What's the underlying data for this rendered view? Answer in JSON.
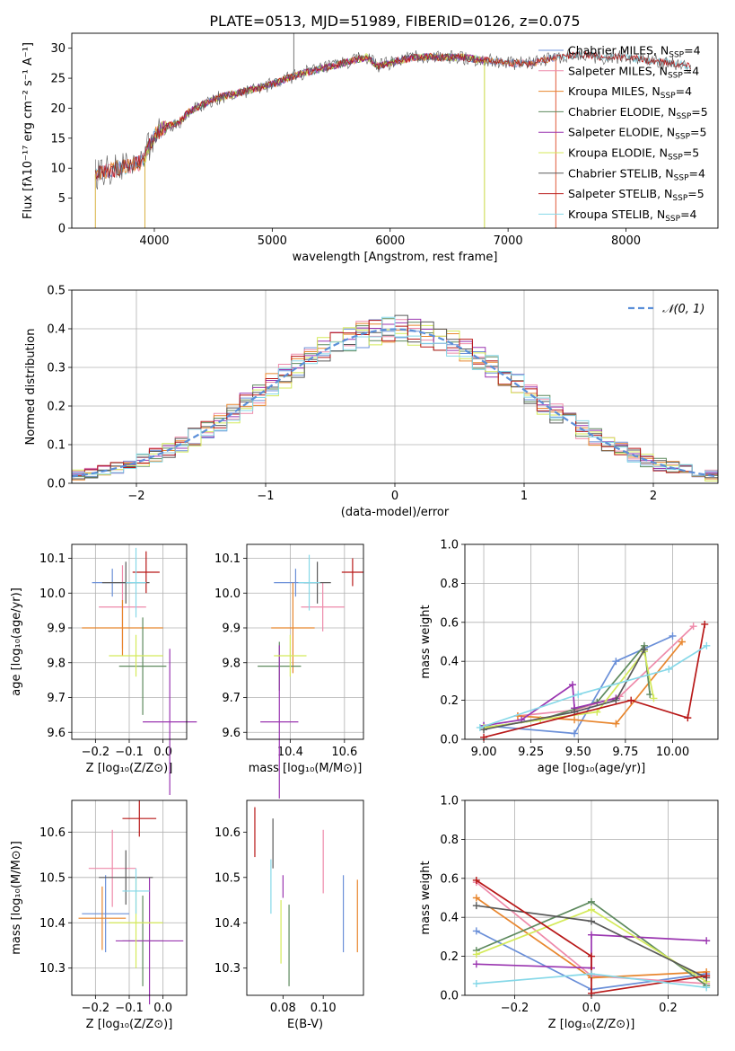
{
  "title": "PLATE=0513, MJD=51989, FIBERID=0126, z=0.075",
  "colors": {
    "Chabrier MILES": "#6a8fd8",
    "Salpeter MILES": "#ee8aaa",
    "Kroupa MILES": "#e8862e",
    "Chabrier ELODIE": "#5e8a5e",
    "Salpeter ELODIE": "#9a35b0",
    "Kroupa ELODIE": "#d4ea5a",
    "Chabrier STELIB": "#5a5a5a",
    "Salpeter STELIB": "#b81818",
    "Kroupa STELIB": "#86d8e8",
    "normal": "#5b8fd9"
  },
  "legend_text": [
    {
      "name": "Chabrier MILES",
      "label": "Chabrier MILES, N",
      "sub": "SSP",
      "tail": "=4"
    },
    {
      "name": "Salpeter MILES",
      "label": "Salpeter MILES, N",
      "sub": "SSP",
      "tail": "=4"
    },
    {
      "name": "Kroupa MILES",
      "label": "Kroupa MILES, N",
      "sub": "SSP",
      "tail": "=4"
    },
    {
      "name": "Chabrier ELODIE",
      "label": "Chabrier ELODIE, N",
      "sub": "SSP",
      "tail": "=5"
    },
    {
      "name": "Salpeter ELODIE",
      "label": "Salpeter ELODIE, N",
      "sub": "SSP",
      "tail": "=5"
    },
    {
      "name": "Kroupa ELODIE",
      "label": "Kroupa ELODIE, N",
      "sub": "SSP",
      "tail": "=5"
    },
    {
      "name": "Chabrier STELIB",
      "label": "Chabrier STELIB, N",
      "sub": "SSP",
      "tail": "=4"
    },
    {
      "name": "Salpeter STELIB",
      "label": "Salpeter STELIB, N",
      "sub": "SSP",
      "tail": "=5"
    },
    {
      "name": "Kroupa STELIB",
      "label": "Kroupa STELIB, N",
      "sub": "SSP",
      "tail": "=4"
    }
  ],
  "chart_data": [
    {
      "id": "spectrum",
      "type": "line",
      "xlabel": "wavelength [Angstrom, rest frame]",
      "ylabel": "Flux [fλ10⁻¹⁷ erg cm⁻² s⁻¹ A⁻¹]",
      "xlim": [
        3300,
        8780
      ],
      "ylim": [
        0,
        32.5
      ],
      "xticks": [
        4000,
        5000,
        6000,
        7000,
        8000
      ],
      "yticks": [
        0,
        5,
        10,
        15,
        20,
        25,
        30
      ],
      "grid": false,
      "legend": "upper right",
      "continuum": {
        "x": [
          3500,
          3700,
          3900,
          3950,
          4000,
          4100,
          4200,
          4300,
          4500,
          4700,
          4900,
          5000,
          5200,
          5400,
          5600,
          5800,
          5900,
          6000,
          6200,
          6400,
          6600,
          6800,
          7000,
          7200,
          7400,
          7600,
          7800,
          8000,
          8200,
          8400,
          8550
        ],
        "y": [
          9,
          10,
          11,
          13.5,
          15.5,
          17,
          17.5,
          19.5,
          21.5,
          22.5,
          23.5,
          24,
          25.5,
          26.5,
          27.5,
          28.5,
          27,
          27.5,
          28.5,
          28.5,
          28.5,
          28,
          27.5,
          27.5,
          28.5,
          29,
          28.5,
          28.5,
          28,
          27.5,
          27
        ]
      },
      "spikes": [
        {
          "x": 3500,
          "y": 0
        },
        {
          "x": 3920,
          "y": 0
        },
        {
          "x": 5183,
          "y": 32.5
        },
        {
          "x": 6800,
          "y": 0
        },
        {
          "x": 7405,
          "y": 0
        }
      ]
    },
    {
      "id": "residual-histogram",
      "type": "line",
      "xlabel": "(data-model)/error",
      "ylabel": "Normed distribution",
      "xlim": [
        -2.5,
        2.5
      ],
      "ylim": [
        0,
        0.5
      ],
      "xticks": [
        -2,
        -1,
        0,
        1,
        2
      ],
      "yticks": [
        0,
        0.1,
        0.2,
        0.3,
        0.4,
        0.5
      ],
      "grid": true,
      "legend": "upper right",
      "reference_label": "𝒩(0, 1)",
      "bin_width": 0.1
    },
    {
      "id": "age-vs-Z",
      "type": "scatter",
      "xlabel": "Z [log₁₀(Z/Z⊙)]",
      "ylabel": "age  [log₁₀(age/yr)]",
      "xlim": [
        -0.27,
        0.07
      ],
      "ylim": [
        9.58,
        10.14
      ],
      "xticks": [
        -0.2,
        -0.1,
        0.0
      ],
      "yticks": [
        9.6,
        9.7,
        9.8,
        9.9,
        10.0,
        10.1
      ],
      "grid": true,
      "points": [
        {
          "name": "Chabrier MILES",
          "x": -0.15,
          "xerr": 0.06,
          "y": 10.03,
          "yerr": 0.04
        },
        {
          "name": "Salpeter MILES",
          "x": -0.12,
          "xerr": 0.07,
          "y": 9.96,
          "yerr": 0.12
        },
        {
          "name": "Kroupa MILES",
          "x": -0.12,
          "xerr": 0.12,
          "y": 9.9,
          "yerr": 0.08
        },
        {
          "name": "Chabrier ELODIE",
          "x": -0.06,
          "xerr": 0.07,
          "y": 9.79,
          "yerr": 0.14
        },
        {
          "name": "Salpeter ELODIE",
          "x": 0.02,
          "xerr": 0.08,
          "y": 9.63,
          "yerr": 0.21
        },
        {
          "name": "Kroupa ELODIE",
          "x": -0.08,
          "xerr": 0.08,
          "y": 9.82,
          "yerr": 0.06
        },
        {
          "name": "Chabrier STELIB",
          "x": -0.11,
          "xerr": 0.07,
          "y": 10.03,
          "yerr": 0.06
        },
        {
          "name": "Salpeter STELIB",
          "x": -0.05,
          "xerr": 0.04,
          "y": 10.06,
          "yerr": 0.06
        },
        {
          "name": "Kroupa STELIB",
          "x": -0.08,
          "xerr": 0.03,
          "y": 10.03,
          "yerr": 0.1
        }
      ]
    },
    {
      "id": "age-vs-mass",
      "type": "scatter",
      "xlabel": "mass [log₁₀(M/M⊙)]",
      "ylabel": "",
      "xlim": [
        10.24,
        10.67
      ],
      "ylim": [
        9.58,
        10.14
      ],
      "xticks": [
        10.4,
        10.6
      ],
      "yticks": [
        9.6,
        9.7,
        9.8,
        9.9,
        10.0,
        10.1
      ],
      "grid": true,
      "points": [
        {
          "name": "Chabrier MILES",
          "x": 10.42,
          "xerr": 0.08,
          "y": 10.03,
          "yerr": 0.04
        },
        {
          "name": "Salpeter MILES",
          "x": 10.52,
          "xerr": 0.08,
          "y": 9.96,
          "yerr": 0.07
        },
        {
          "name": "Kroupa MILES",
          "x": 10.41,
          "xerr": 0.08,
          "y": 9.9,
          "yerr": 0.13
        },
        {
          "name": "Chabrier ELODIE",
          "x": 10.36,
          "xerr": 0.08,
          "y": 9.79,
          "yerr": 0.07
        },
        {
          "name": "Salpeter ELODIE",
          "x": 10.36,
          "xerr": 0.07,
          "y": 9.63,
          "yerr": 0.22
        },
        {
          "name": "Kroupa ELODIE",
          "x": 10.4,
          "xerr": 0.06,
          "y": 9.82,
          "yerr": 0.06
        },
        {
          "name": "Chabrier STELIB",
          "x": 10.5,
          "xerr": 0.05,
          "y": 10.03,
          "yerr": 0.06
        },
        {
          "name": "Salpeter STELIB",
          "x": 10.63,
          "xerr": 0.04,
          "y": 10.06,
          "yerr": 0.04
        },
        {
          "name": "Kroupa STELIB",
          "x": 10.47,
          "xerr": 0.04,
          "y": 10.03,
          "yerr": 0.08
        }
      ]
    },
    {
      "id": "weights-vs-age",
      "type": "line",
      "xlabel": "age  [log₁₀(age/yr)]",
      "ylabel": "mass weight",
      "xlim": [
        8.9,
        10.24
      ],
      "ylim": [
        0,
        1
      ],
      "xticks": [
        9.0,
        9.25,
        9.5,
        9.75,
        10.0
      ],
      "yticks": [
        0.0,
        0.2,
        0.4,
        0.6,
        0.8,
        1.0
      ],
      "grid": true,
      "series": [
        {
          "name": "Chabrier MILES",
          "x": [
            9.0,
            9.48,
            9.7,
            10.0
          ],
          "y": [
            0.07,
            0.03,
            0.4,
            0.53
          ]
        },
        {
          "name": "Salpeter MILES",
          "x": [
            9.18,
            9.48,
            9.72,
            10.11
          ],
          "y": [
            0.12,
            0.15,
            0.22,
            0.58
          ]
        },
        {
          "name": "Kroupa MILES",
          "x": [
            9.18,
            9.48,
            9.7,
            10.05
          ],
          "y": [
            0.12,
            0.1,
            0.08,
            0.5
          ]
        },
        {
          "name": "Chabrier ELODIE",
          "x": [
            9.0,
            9.3,
            9.6,
            9.85,
            9.88
          ],
          "y": [
            0.06,
            0.1,
            0.19,
            0.48,
            0.23
          ]
        },
        {
          "name": "Salpeter ELODIE",
          "x": [
            9.0,
            9.2,
            9.47,
            9.48,
            9.7
          ],
          "y": [
            0.07,
            0.1,
            0.28,
            0.16,
            0.21
          ]
        },
        {
          "name": "Kroupa ELODIE",
          "x": [
            9.0,
            9.3,
            9.6,
            9.85,
            9.9
          ],
          "y": [
            0.06,
            0.1,
            0.14,
            0.45,
            0.21
          ]
        },
        {
          "name": "Chabrier STELIB",
          "x": [
            9.0,
            9.48,
            9.7,
            9.85
          ],
          "y": [
            0.05,
            0.14,
            0.2,
            0.46
          ]
        },
        {
          "name": "Salpeter STELIB",
          "x": [
            9.0,
            9.78,
            10.08,
            10.17
          ],
          "y": [
            0.01,
            0.2,
            0.11,
            0.59
          ]
        },
        {
          "name": "Kroupa STELIB",
          "x": [
            8.98,
            9.5,
            9.98,
            10.18
          ],
          "y": [
            0.06,
            0.23,
            0.36,
            0.48
          ]
        }
      ]
    },
    {
      "id": "mass-vs-Z",
      "type": "scatter",
      "xlabel": "Z [log₁₀(Z/Z⊙)]",
      "ylabel": "mass [log₁₀(M/M⊙)]",
      "xlim": [
        -0.27,
        0.07
      ],
      "ylim": [
        10.24,
        10.67
      ],
      "xticks": [
        -0.2,
        -0.1,
        0.0
      ],
      "yticks": [
        10.3,
        10.4,
        10.5,
        10.6
      ],
      "grid": true,
      "points": [
        {
          "name": "Chabrier MILES",
          "x": -0.17,
          "xerr": 0.07,
          "y": 10.42,
          "yerr": 0.085
        },
        {
          "name": "Salpeter MILES",
          "x": -0.15,
          "xerr": 0.07,
          "y": 10.52,
          "yerr": 0.085
        },
        {
          "name": "Kroupa MILES",
          "x": -0.18,
          "xerr": 0.07,
          "y": 10.41,
          "yerr": 0.07
        },
        {
          "name": "Chabrier ELODIE",
          "x": -0.06,
          "xerr": 0.06,
          "y": 10.36,
          "yerr": 0.1
        },
        {
          "name": "Salpeter ELODIE",
          "x": -0.04,
          "xerr": 0.1,
          "y": 10.36,
          "yerr": 0.14
        },
        {
          "name": "Kroupa ELODIE",
          "x": -0.08,
          "xerr": 0.08,
          "y": 10.4,
          "yerr": 0.1
        },
        {
          "name": "Chabrier STELIB",
          "x": -0.11,
          "xerr": 0.08,
          "y": 10.5,
          "yerr": 0.06
        },
        {
          "name": "Salpeter STELIB",
          "x": -0.07,
          "xerr": 0.05,
          "y": 10.63,
          "yerr": 0.04
        },
        {
          "name": "Kroupa STELIB",
          "x": -0.08,
          "xerr": 0.04,
          "y": 10.47,
          "yerr": 0.05
        }
      ]
    },
    {
      "id": "mass-vs-ebv",
      "type": "scatter",
      "xlabel": "E(B-V)",
      "ylabel": "",
      "xlim": [
        0.062,
        0.12
      ],
      "ylim": [
        10.24,
        10.67
      ],
      "xticks": [
        0.08,
        0.1
      ],
      "yticks": [
        10.3,
        10.4,
        10.5,
        10.6
      ],
      "grid": false,
      "points": [
        {
          "name": "Chabrier MILES",
          "x": 0.11,
          "xerr": 0,
          "y": 10.42,
          "yerr": 0.085
        },
        {
          "name": "Salpeter MILES",
          "x": 0.1,
          "xerr": 0,
          "y": 10.535,
          "yerr": 0.07
        },
        {
          "name": "Kroupa MILES",
          "x": 0.117,
          "xerr": 0,
          "y": 10.415,
          "yerr": 0.08
        },
        {
          "name": "Chabrier ELODIE",
          "x": 0.083,
          "xerr": 0,
          "y": 10.35,
          "yerr": 0.09
        },
        {
          "name": "Salpeter ELODIE",
          "x": 0.08,
          "xerr": 0,
          "y": 10.48,
          "yerr": 0.025
        },
        {
          "name": "Kroupa ELODIE",
          "x": 0.079,
          "xerr": 0,
          "y": 10.38,
          "yerr": 0.07
        },
        {
          "name": "Chabrier STELIB",
          "x": 0.075,
          "xerr": 0,
          "y": 10.575,
          "yerr": 0.055
        },
        {
          "name": "Salpeter STELIB",
          "x": 0.066,
          "xerr": 0,
          "y": 10.6,
          "yerr": 0.055
        },
        {
          "name": "Kroupa STELIB",
          "x": 0.074,
          "xerr": 0,
          "y": 10.48,
          "yerr": 0.06
        }
      ]
    },
    {
      "id": "weights-vs-Z",
      "type": "line",
      "xlabel": "Z [log₁₀(Z/Z⊙)]",
      "ylabel": "mass weight",
      "xlim": [
        -0.33,
        0.33
      ],
      "ylim": [
        0,
        1
      ],
      "xticks": [
        -0.2,
        0.0,
        0.2
      ],
      "yticks": [
        0.0,
        0.2,
        0.4,
        0.6,
        0.8,
        1.0
      ],
      "grid": true,
      "series": [
        {
          "name": "Chabrier MILES",
          "x": [
            -0.3,
            0.0,
            0.3
          ],
          "y": [
            0.33,
            0.03,
            0.11
          ]
        },
        {
          "name": "Salpeter MILES",
          "x": [
            -0.3,
            0.0,
            0.3
          ],
          "y": [
            0.58,
            0.1,
            0.06
          ]
        },
        {
          "name": "Kroupa MILES",
          "x": [
            -0.3,
            0.0,
            0.3
          ],
          "y": [
            0.5,
            0.09,
            0.12
          ]
        },
        {
          "name": "Chabrier ELODIE",
          "x": [
            -0.3,
            0.0,
            0.3
          ],
          "y": [
            0.23,
            0.48,
            0.05
          ]
        },
        {
          "name": "Salpeter ELODIE",
          "x": [
            -0.3,
            0.0,
            0.0,
            0.3
          ],
          "y": [
            0.16,
            0.14,
            0.31,
            0.28
          ]
        },
        {
          "name": "Kroupa ELODIE",
          "x": [
            -0.3,
            0.0,
            0.3
          ],
          "y": [
            0.21,
            0.44,
            0.07
          ]
        },
        {
          "name": "Chabrier STELIB",
          "x": [
            -0.3,
            0.0,
            0.3
          ],
          "y": [
            0.46,
            0.38,
            0.09
          ]
        },
        {
          "name": "Salpeter STELIB",
          "x": [
            -0.3,
            0.0,
            0.0,
            0.3
          ],
          "y": [
            0.59,
            0.2,
            0.01,
            0.1
          ]
        },
        {
          "name": "Kroupa STELIB",
          "x": [
            -0.3,
            0.0,
            0.3
          ],
          "y": [
            0.06,
            0.11,
            0.04
          ]
        }
      ]
    }
  ]
}
